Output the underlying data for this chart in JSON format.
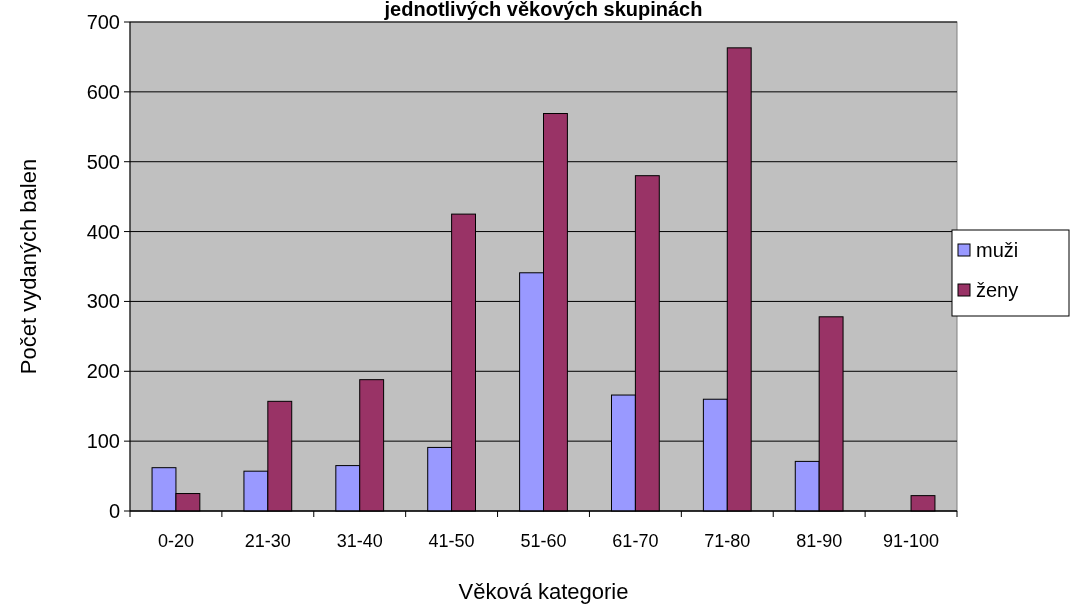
{
  "chart_data": {
    "type": "bar",
    "title": "jednotlivých věkových skupinách",
    "xlabel": "Věková kategorie",
    "ylabel": "Počet vydaných balen",
    "categories": [
      "0-20",
      "21-30",
      "31-40",
      "41-50",
      "51-60",
      "61-70",
      "71-80",
      "81-90",
      "91-100"
    ],
    "series": [
      {
        "name": "muži",
        "color": "#9999ff",
        "values": [
          62,
          57,
          65,
          91,
          341,
          166,
          160,
          71,
          0
        ]
      },
      {
        "name": "ženy",
        "color": "#993366",
        "values": [
          25,
          157,
          188,
          425,
          569,
          480,
          663,
          278,
          22
        ]
      }
    ],
    "ylim": [
      0,
      700
    ],
    "yticks": [
      0,
      100,
      200,
      300,
      400,
      500,
      600,
      700
    ],
    "grid": "y",
    "legend": "right"
  }
}
